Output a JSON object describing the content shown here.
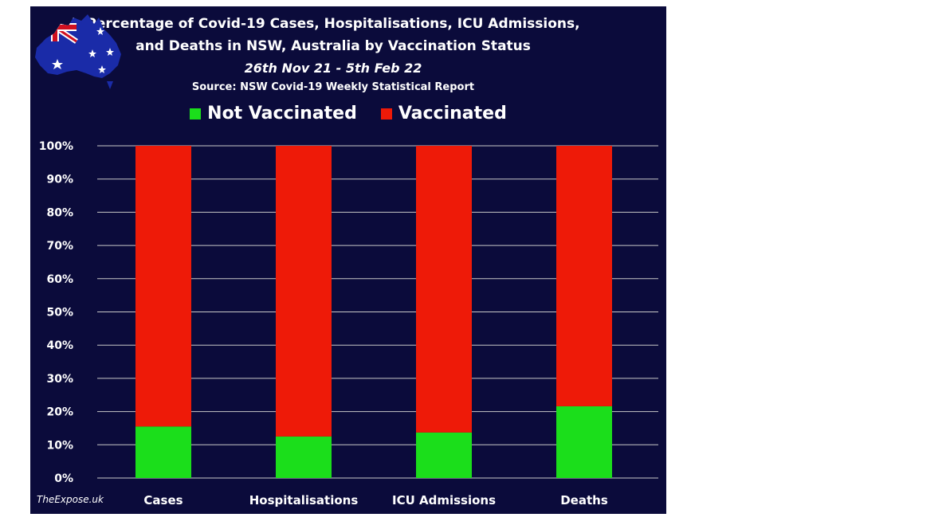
{
  "title": {
    "line1": "Percentage of Covid-19 Cases, Hospitalisations, ICU Admissions,",
    "line2": "and Deaths in NSW, Australia by Vaccination Status",
    "date_range": "26th Nov 21 - 5th Feb 22",
    "source": "Source: NSW Covid-19 Weekly Statistical Report"
  },
  "watermark": "TheExpose.uk",
  "legend": [
    {
      "label": "Not Vaccinated",
      "color": "#1bde1b"
    },
    {
      "label": "Vaccinated",
      "color": "#ee1a08"
    }
  ],
  "colors": {
    "background": "#0b0b3b",
    "not_vaccinated": "#1bde1b",
    "vaccinated": "#ee1a08",
    "gridline": "#c8c8c8"
  },
  "chart_data": {
    "type": "bar",
    "stacked": true,
    "categories": [
      "Cases",
      "Hospitalisations",
      "ICU Admissions",
      "Deaths"
    ],
    "series": [
      {
        "name": "Not Vaccinated",
        "values": [
          15.5,
          12.5,
          13.7,
          21.6
        ]
      },
      {
        "name": "Vaccinated",
        "values": [
          84.5,
          87.5,
          86.3,
          78.4
        ]
      }
    ],
    "ylim": [
      0,
      100
    ],
    "yticks": [
      "0%",
      "10%",
      "20%",
      "30%",
      "40%",
      "50%",
      "60%",
      "70%",
      "80%",
      "90%",
      "100%"
    ],
    "grid": true,
    "legend_position": "top"
  }
}
